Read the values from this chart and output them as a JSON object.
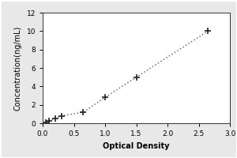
{
  "x": [
    0.05,
    0.1,
    0.2,
    0.3,
    0.65,
    1.0,
    1.5,
    2.65
  ],
  "y": [
    0.1,
    0.3,
    0.5,
    0.8,
    1.2,
    2.8,
    5.0,
    10.0
  ],
  "xlabel": "Optical Density",
  "ylabel": "Concentration(ng/mL)",
  "xlim": [
    0,
    3
  ],
  "ylim": [
    0,
    12
  ],
  "xticks": [
    0,
    0.5,
    1,
    1.5,
    2,
    2.5,
    3
  ],
  "yticks": [
    0,
    2,
    4,
    6,
    8,
    10,
    12
  ],
  "marker": "+",
  "marker_color": "#222222",
  "line_color": "#555555",
  "marker_size": 6,
  "marker_linewidth": 1.2,
  "background_color": "#ffffff",
  "outer_bg": "#e8e8e8",
  "label_fontsize": 7,
  "tick_fontsize": 6.5
}
